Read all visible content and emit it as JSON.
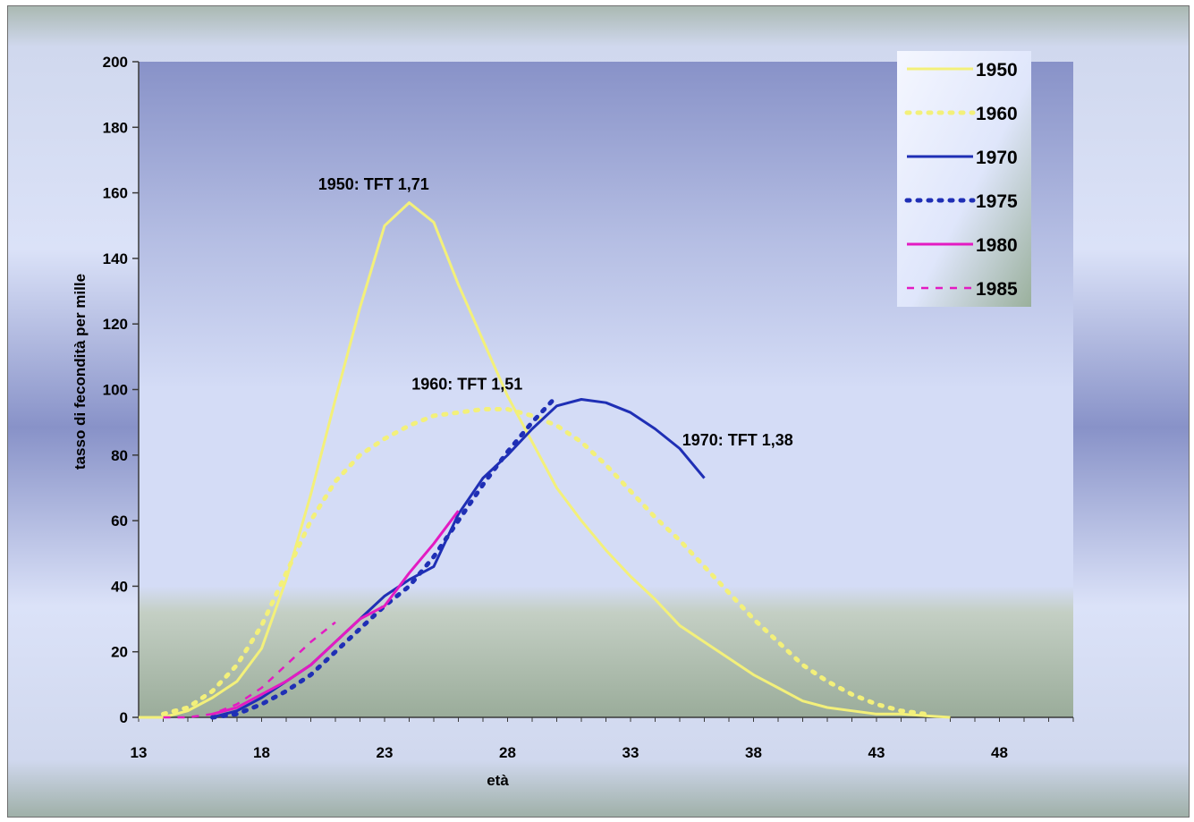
{
  "chart_data": {
    "type": "line",
    "xlabel": "età",
    "ylabel": "tasso di fecondità per mille",
    "xlim": [
      13,
      51
    ],
    "ylim": [
      0,
      200
    ],
    "xticks": [
      13,
      18,
      23,
      28,
      33,
      38,
      43,
      48
    ],
    "yticks": [
      0,
      20,
      40,
      60,
      80,
      100,
      120,
      140,
      160,
      180,
      200
    ],
    "grid": false,
    "legend_position": "top-right",
    "series": [
      {
        "name": "1950",
        "color": "#f3f07a",
        "dash": "solid",
        "x": [
          13,
          14,
          15,
          16,
          17,
          18,
          19,
          20,
          21,
          22,
          23,
          24,
          25,
          26,
          27,
          28,
          29,
          30,
          31,
          32,
          33,
          34,
          35,
          36,
          37,
          38,
          39,
          40,
          41,
          42,
          43,
          44,
          45,
          46
        ],
        "y": [
          0,
          0,
          2,
          6,
          11,
          21,
          42,
          68,
          97,
          125,
          150,
          157,
          151,
          132,
          115,
          98,
          84,
          70,
          60,
          51,
          43,
          36,
          28,
          23,
          18,
          13,
          9,
          5,
          3,
          2,
          1,
          1,
          0.5,
          0
        ]
      },
      {
        "name": "1960",
        "color": "#f3f07a",
        "dash": "dotted",
        "x": [
          14,
          15,
          16,
          17,
          18,
          19,
          20,
          21,
          22,
          23,
          24,
          25,
          26,
          27,
          28,
          29,
          30,
          31,
          32,
          33,
          34,
          35,
          36,
          37,
          38,
          39,
          40,
          41,
          42,
          43,
          44,
          45
        ],
        "y": [
          1,
          3,
          8,
          16,
          28,
          44,
          60,
          72,
          80,
          85,
          89,
          92,
          93,
          94,
          94,
          92,
          89,
          84,
          77,
          69,
          61,
          54,
          46,
          38,
          30,
          23,
          16,
          11,
          7,
          4,
          2,
          1
        ]
      },
      {
        "name": "1970",
        "color": "#1f2fb5",
        "dash": "solid",
        "x": [
          16,
          17,
          18,
          19,
          20,
          21,
          22,
          23,
          24,
          25,
          26,
          27,
          28,
          29,
          30,
          31,
          32,
          33,
          34,
          35,
          36
        ],
        "y": [
          0,
          2,
          6,
          11,
          16,
          23,
          30,
          37,
          42,
          46,
          62,
          73,
          80,
          88,
          95,
          97,
          96,
          93,
          88,
          82,
          73
        ]
      },
      {
        "name": "1975",
        "color": "#1f2fb5",
        "dash": "dotted",
        "x": [
          16,
          17,
          18,
          19,
          20,
          21,
          22,
          23,
          24,
          25,
          26,
          27,
          28,
          29,
          30
        ],
        "y": [
          0,
          1,
          4,
          8,
          13,
          20,
          27,
          34,
          40,
          49,
          60,
          71,
          81,
          90,
          98
        ]
      },
      {
        "name": "1980",
        "color": "#e31bc2",
        "dash": "solid",
        "x": [
          16,
          17,
          18,
          19,
          20,
          21,
          22,
          23,
          24,
          25,
          26
        ],
        "y": [
          1,
          3,
          7,
          11,
          16,
          23,
          30,
          34,
          44,
          53,
          63
        ]
      },
      {
        "name": "1985",
        "color": "#e31bc2",
        "dash": "dashed",
        "x": [
          14,
          15,
          16,
          17,
          18,
          19,
          20,
          21
        ],
        "y": [
          0,
          0,
          1,
          4,
          9,
          16,
          23,
          29
        ]
      }
    ],
    "annotations": [
      {
        "text": "1950: TFT 1,71",
        "x": 20.3,
        "y": 161
      },
      {
        "text": "1960: TFT 1,51",
        "x": 24.1,
        "y": 100
      },
      {
        "text": "1970: TFT 1,38",
        "x": 35.1,
        "y": 83
      }
    ]
  }
}
